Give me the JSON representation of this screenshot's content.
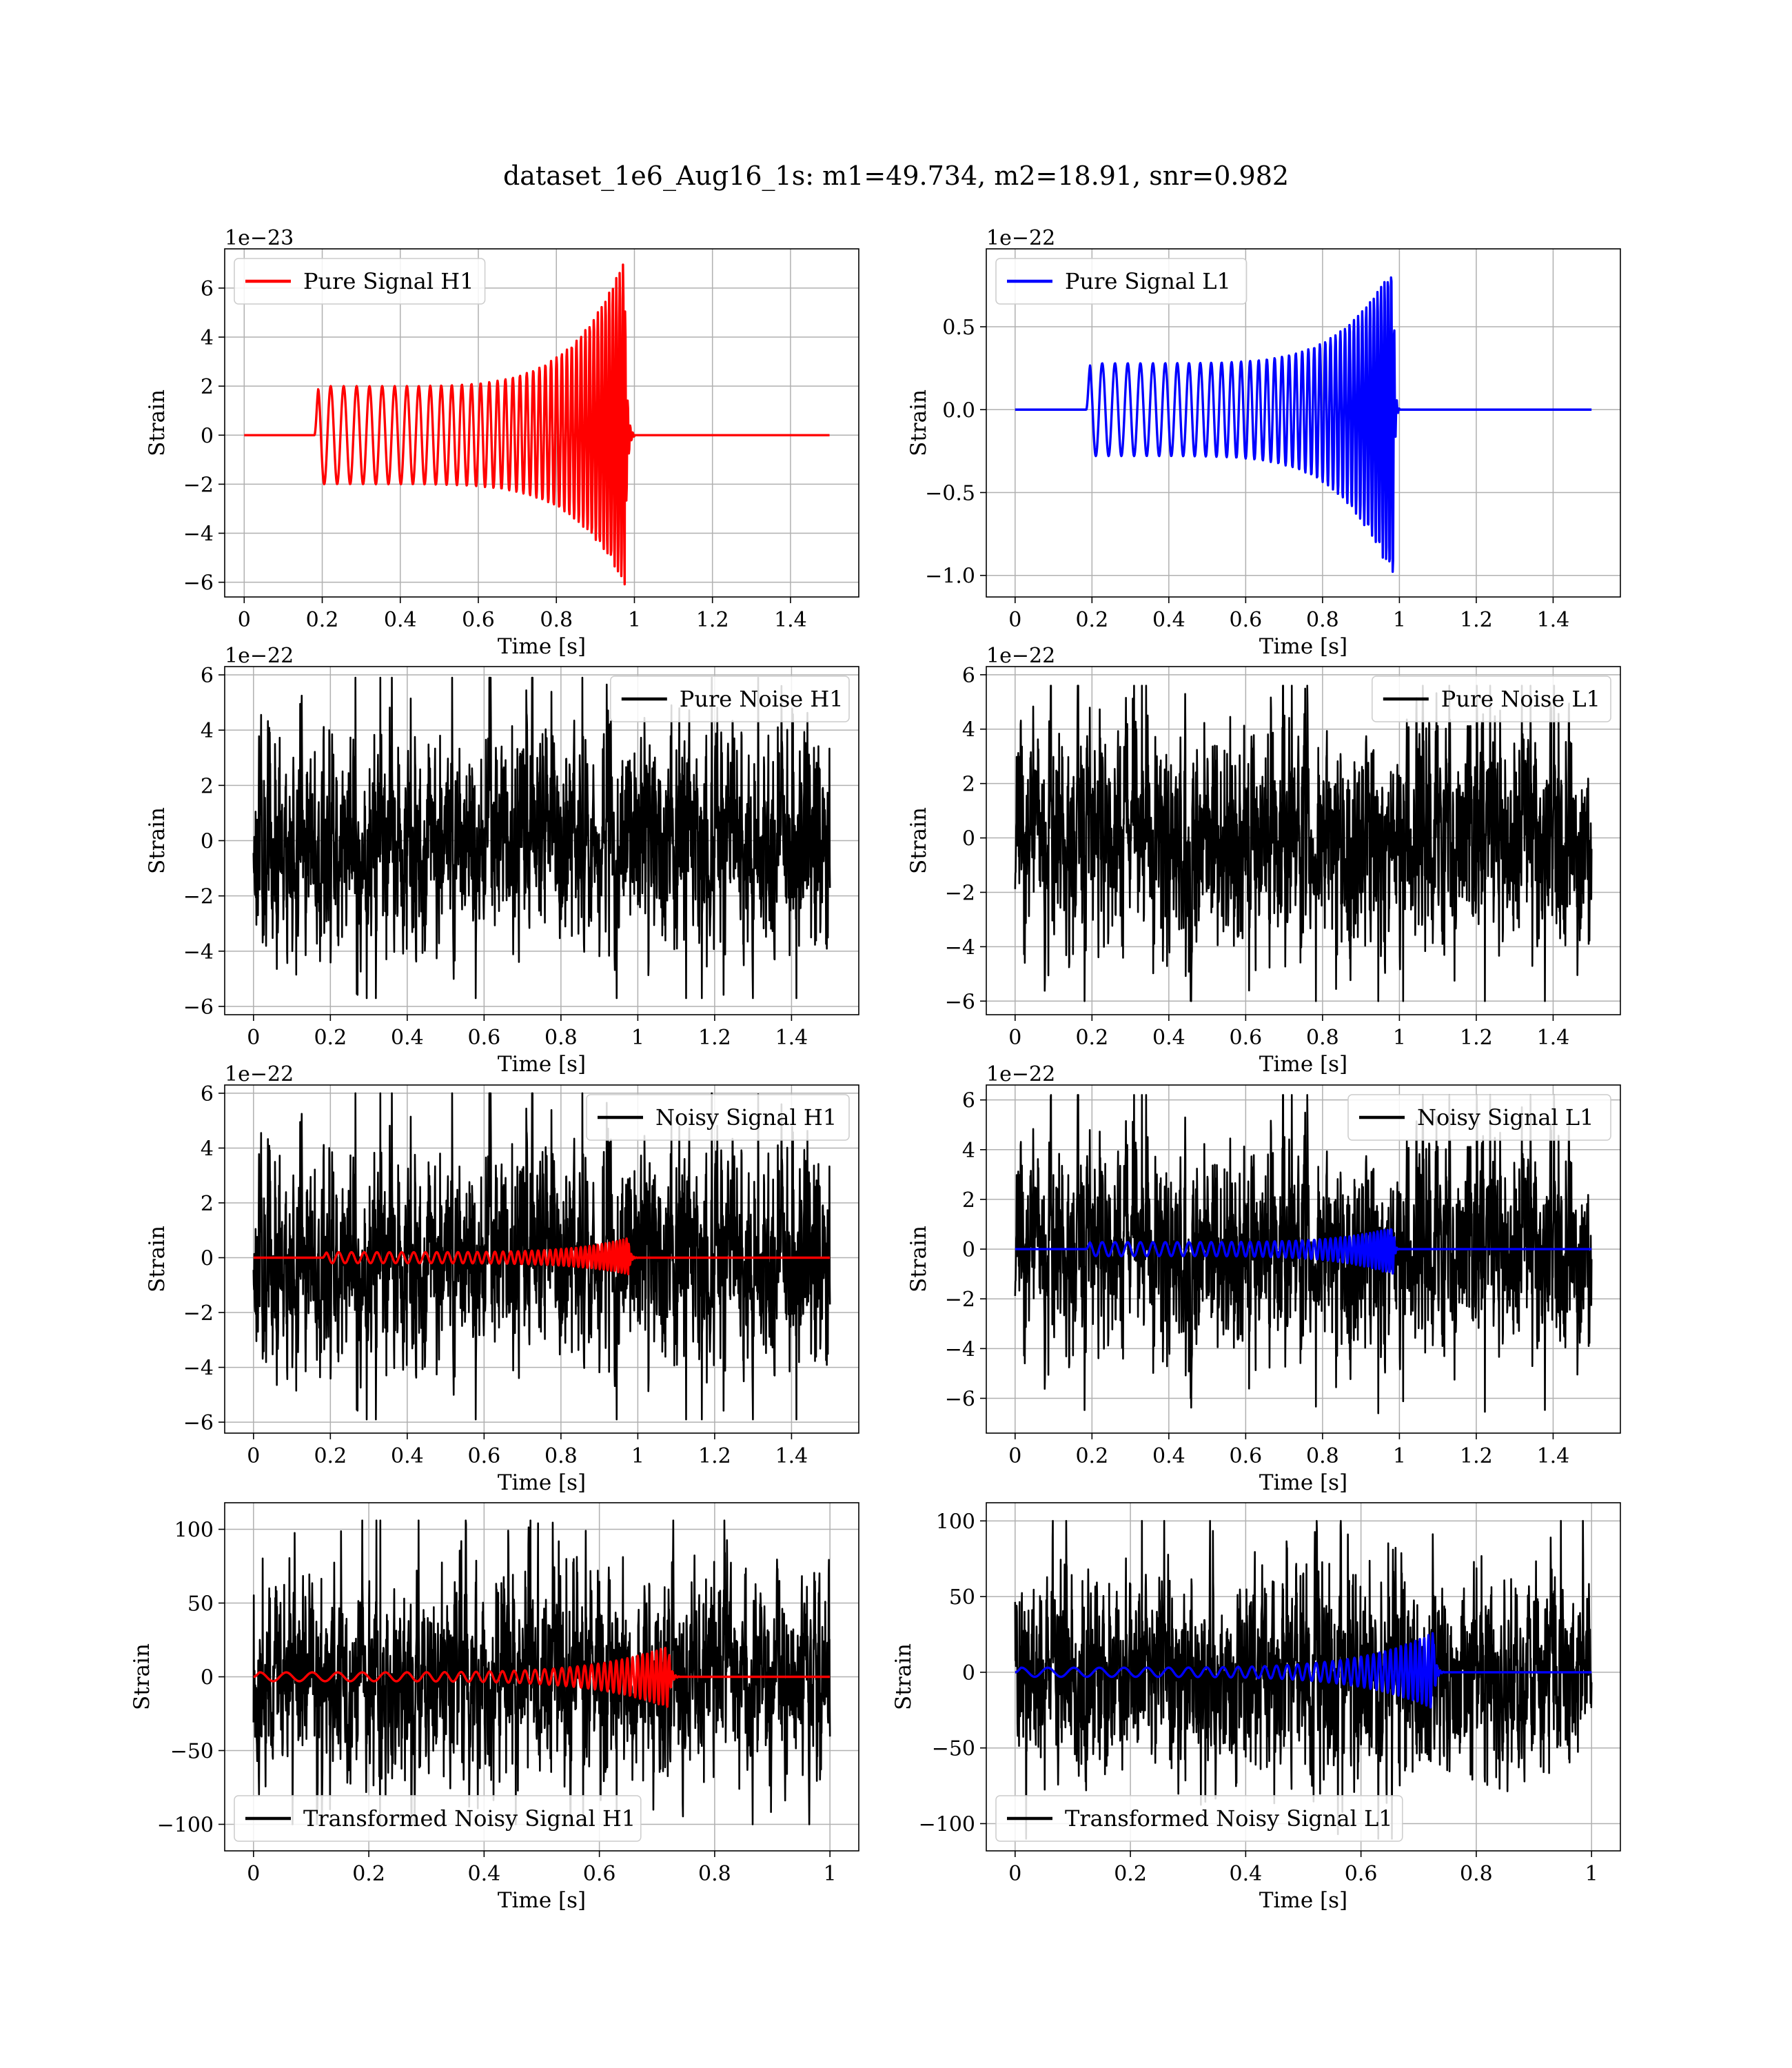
{
  "figure": {
    "suptitle": "dataset_1e6_Aug16_1s: m1=49.734, m2=18.91, snr=0.982"
  },
  "chart_data": [
    {
      "id": "pure-signal-h1",
      "type": "line",
      "title": "",
      "xlabel": "Time [s]",
      "ylabel": "Strain",
      "offset_text": "1e−23",
      "xlim": [
        -0.05,
        1.575
      ],
      "ylim": [
        -6.6,
        7.6
      ],
      "xticks": [
        0.0,
        0.2,
        0.4,
        0.6,
        0.8,
        1.0,
        1.2,
        1.4
      ],
      "yticks": [
        -6,
        -4,
        -2,
        0,
        2,
        4,
        6
      ],
      "grid": true,
      "legend_loc": "upper-left",
      "series": [
        {
          "name": "Pure Signal H1",
          "color": "#ff0000",
          "kind": "chirp",
          "t_start": 0.0,
          "t_end": 1.5,
          "t_on": 0.18,
          "t_merge": 0.975,
          "t_ring": 1.0,
          "amp_start": 2.0,
          "amp_peak": 7.2,
          "amp_min": -6.1,
          "freq_start": 30,
          "freq_end": 120
        }
      ]
    },
    {
      "id": "pure-signal-l1",
      "type": "line",
      "title": "",
      "xlabel": "Time [s]",
      "ylabel": "Strain",
      "offset_text": "1e−22",
      "xlim": [
        -0.075,
        1.575
      ],
      "ylim": [
        -1.13,
        0.97
      ],
      "xticks": [
        0.0,
        0.2,
        0.4,
        0.6,
        0.8,
        1.0,
        1.2,
        1.4
      ],
      "yticks": [
        -1.0,
        -0.5,
        0.0,
        0.5
      ],
      "ytick_labels": [
        "−1.0",
        "−0.5",
        "0.0",
        "0.5"
      ],
      "grid": true,
      "legend_loc": "upper-left",
      "series": [
        {
          "name": "Pure Signal L1",
          "color": "#0000ff",
          "kind": "chirp",
          "t_start": 0.0,
          "t_end": 1.5,
          "t_on": 0.185,
          "t_merge": 0.985,
          "t_ring": 1.0,
          "amp_start": 0.28,
          "amp_peak": 0.88,
          "amp_min": -1.04,
          "freq_start": 30,
          "freq_end": 120
        }
      ]
    },
    {
      "id": "pure-noise-h1",
      "type": "line",
      "title": "",
      "xlabel": "Time [s]",
      "ylabel": "Strain",
      "offset_text": "1e−22",
      "xlim": [
        -0.075,
        1.575
      ],
      "ylim": [
        -6.3,
        6.3
      ],
      "xticks": [
        0.0,
        0.2,
        0.4,
        0.6,
        0.8,
        1.0,
        1.2,
        1.4
      ],
      "yticks": [
        -6,
        -4,
        -2,
        0,
        2,
        4,
        6
      ],
      "grid": true,
      "legend_loc": "upper-right",
      "series": [
        {
          "name": "Pure Noise H1",
          "color": "#000000",
          "kind": "noise",
          "t_start": 0.0,
          "t_end": 1.5,
          "noise_sigma": 1.6,
          "noise_max": 5.9,
          "noise_min": -5.7,
          "seed": 11
        }
      ]
    },
    {
      "id": "pure-noise-l1",
      "type": "line",
      "title": "",
      "xlabel": "Time [s]",
      "ylabel": "Strain",
      "offset_text": "1e−22",
      "xlim": [
        -0.075,
        1.575
      ],
      "ylim": [
        -6.5,
        6.3
      ],
      "xticks": [
        0.0,
        0.2,
        0.4,
        0.6,
        0.8,
        1.0,
        1.2,
        1.4
      ],
      "yticks": [
        -6,
        -4,
        -2,
        0,
        2,
        4,
        6
      ],
      "grid": true,
      "legend_loc": "upper-right",
      "series": [
        {
          "name": "Pure Noise L1",
          "color": "#000000",
          "kind": "noise",
          "t_start": 0.0,
          "t_end": 1.5,
          "noise_sigma": 1.7,
          "noise_max": 5.6,
          "noise_min": -6.0,
          "seed": 23
        }
      ]
    },
    {
      "id": "noisy-signal-h1",
      "type": "line",
      "title": "",
      "xlabel": "Time [s]",
      "ylabel": "Strain",
      "offset_text": "1e−22",
      "xlim": [
        -0.075,
        1.575
      ],
      "ylim": [
        -6.4,
        6.3
      ],
      "xticks": [
        0.0,
        0.2,
        0.4,
        0.6,
        0.8,
        1.0,
        1.2,
        1.4
      ],
      "yticks": [
        -6,
        -4,
        -2,
        0,
        2,
        4,
        6
      ],
      "grid": true,
      "legend_loc": "upper-right",
      "series": [
        {
          "name": "Noisy Signal H1",
          "color": "#000000",
          "kind": "noise",
          "t_start": 0.0,
          "t_end": 1.5,
          "noise_sigma": 1.6,
          "noise_max": 6.0,
          "noise_min": -5.9,
          "seed": 11
        },
        {
          "name": "",
          "color": "#ff0000",
          "kind": "chirp",
          "t_start": 0.0,
          "t_end": 1.5,
          "t_on": 0.18,
          "t_merge": 0.975,
          "t_ring": 1.0,
          "amp_start": 0.2,
          "amp_peak": 0.72,
          "amp_min": -0.6,
          "freq_start": 30,
          "freq_end": 120
        }
      ]
    },
    {
      "id": "noisy-signal-l1",
      "type": "line",
      "title": "",
      "xlabel": "Time [s]",
      "ylabel": "Strain",
      "offset_text": "1e−22",
      "xlim": [
        -0.075,
        1.575
      ],
      "ylim": [
        -7.4,
        6.6
      ],
      "xticks": [
        0.0,
        0.2,
        0.4,
        0.6,
        0.8,
        1.0,
        1.2,
        1.4
      ],
      "yticks": [
        -6,
        -4,
        -2,
        0,
        2,
        4,
        6
      ],
      "grid": true,
      "legend_loc": "upper-right",
      "series": [
        {
          "name": "Noisy Signal L1",
          "color": "#000000",
          "kind": "noise",
          "t_start": 0.0,
          "t_end": 1.5,
          "noise_sigma": 1.7,
          "noise_max": 6.2,
          "noise_min": -6.6,
          "seed": 23
        },
        {
          "name": "",
          "color": "#0000ff",
          "kind": "chirp",
          "t_start": 0.0,
          "t_end": 1.5,
          "t_on": 0.185,
          "t_merge": 0.985,
          "t_ring": 1.0,
          "amp_start": 0.28,
          "amp_peak": 0.88,
          "amp_min": -1.04,
          "freq_start": 30,
          "freq_end": 120
        }
      ]
    },
    {
      "id": "transformed-h1",
      "type": "line",
      "title": "",
      "xlabel": "Time [s]",
      "ylabel": "Strain",
      "offset_text": "",
      "xlim": [
        -0.05,
        1.05
      ],
      "ylim": [
        -118,
        118
      ],
      "xticks": [
        0.0,
        0.2,
        0.4,
        0.6,
        0.8,
        1.0
      ],
      "yticks": [
        -100,
        -50,
        0,
        50,
        100
      ],
      "grid": true,
      "legend_loc": "lower-left",
      "series": [
        {
          "name": "Transformed Noisy Signal H1",
          "color": "#000000",
          "kind": "noise",
          "t_start": 0.0,
          "t_end": 1.0,
          "noise_sigma": 28,
          "noise_max": 106,
          "noise_min": -100,
          "seed": 37
        },
        {
          "name": "",
          "color": "#ff0000",
          "kind": "chirp",
          "t_start": 0.0,
          "t_end": 1.0,
          "t_on": 0.0,
          "t_merge": 0.72,
          "t_ring": 0.74,
          "amp_start": 3,
          "amp_peak": 21,
          "amp_min": -21,
          "freq_start": 22,
          "freq_end": 140
        }
      ]
    },
    {
      "id": "transformed-l1",
      "type": "line",
      "title": "",
      "xlabel": "Time [s]",
      "ylabel": "Strain",
      "offset_text": "",
      "xlim": [
        -0.05,
        1.05
      ],
      "ylim": [
        -118,
        112
      ],
      "xticks": [
        0.0,
        0.2,
        0.4,
        0.6,
        0.8,
        1.0
      ],
      "yticks": [
        -100,
        -50,
        0,
        50,
        100
      ],
      "grid": true,
      "legend_loc": "lower-left",
      "series": [
        {
          "name": "Transformed Noisy Signal L1",
          "color": "#000000",
          "kind": "noise",
          "t_start": 0.0,
          "t_end": 1.0,
          "noise_sigma": 28,
          "noise_max": 100,
          "noise_min": -110,
          "seed": 41
        },
        {
          "name": "",
          "color": "#0000ff",
          "kind": "chirp",
          "t_start": 0.0,
          "t_end": 1.0,
          "t_on": 0.0,
          "t_merge": 0.725,
          "t_ring": 0.745,
          "amp_start": 3,
          "amp_peak": 26,
          "amp_min": -24,
          "freq_start": 22,
          "freq_end": 140
        }
      ]
    }
  ]
}
